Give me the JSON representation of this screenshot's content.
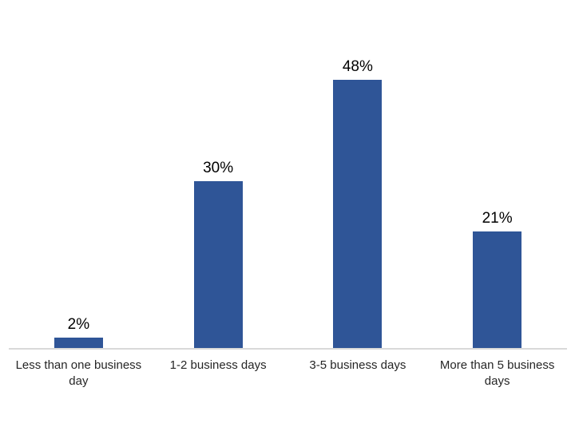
{
  "chart_data": {
    "type": "bar",
    "title": "",
    "xlabel": "",
    "ylabel": "",
    "categories": [
      "Less than one business day",
      "1-2 business days",
      "3-5 business days",
      "More than 5 business days"
    ],
    "values": [
      2,
      30,
      48,
      21
    ],
    "data_labels": [
      "2%",
      "30%",
      "48%",
      "21%"
    ],
    "ylim": [
      0,
      60
    ],
    "grid": false,
    "legend_position": "none",
    "y_axis_visible": false,
    "bar_color": "#2F5597",
    "axis_line_color": "#D9D9D9",
    "data_label_color": "#000000",
    "category_label_color": "#262626"
  }
}
